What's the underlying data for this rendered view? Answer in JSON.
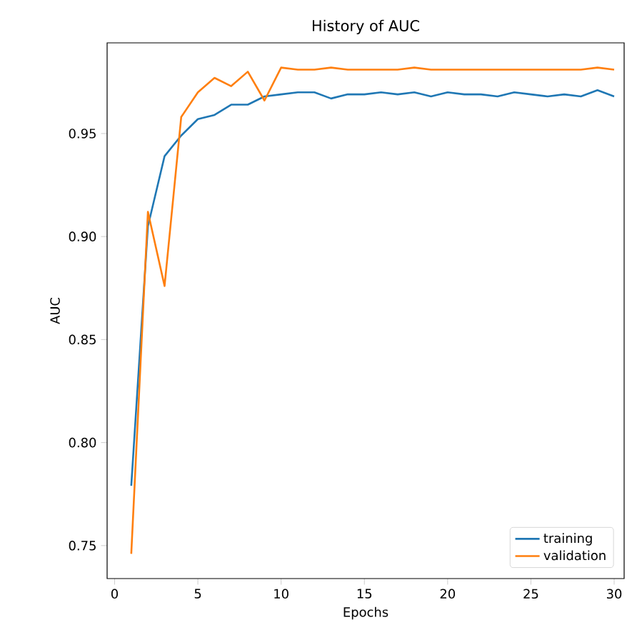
{
  "chart_data": {
    "type": "line",
    "title": "History of AUC",
    "xlabel": "Epochs",
    "ylabel": "AUC",
    "x": [
      1,
      2,
      3,
      4,
      5,
      6,
      7,
      8,
      9,
      10,
      11,
      12,
      13,
      14,
      15,
      16,
      17,
      18,
      19,
      20,
      21,
      22,
      23,
      24,
      25,
      26,
      27,
      28,
      29,
      30
    ],
    "series": [
      {
        "name": "training",
        "color": "#1f77b4",
        "values": [
          0.779,
          0.905,
          0.939,
          0.949,
          0.957,
          0.959,
          0.964,
          0.964,
          0.968,
          0.969,
          0.97,
          0.97,
          0.967,
          0.969,
          0.969,
          0.97,
          0.969,
          0.97,
          0.968,
          0.97,
          0.969,
          0.969,
          0.968,
          0.97,
          0.969,
          0.968,
          0.969,
          0.968,
          0.971,
          0.968
        ]
      },
      {
        "name": "validation",
        "color": "#ff7f0e",
        "values": [
          0.746,
          0.912,
          0.876,
          0.958,
          0.97,
          0.977,
          0.973,
          0.98,
          0.966,
          0.982,
          0.981,
          0.981,
          0.982,
          0.981,
          0.981,
          0.981,
          0.981,
          0.982,
          0.981,
          0.981,
          0.981,
          0.981,
          0.981,
          0.981,
          0.981,
          0.981,
          0.981,
          0.981,
          0.982,
          0.981
        ]
      }
    ],
    "xlim": [
      -0.45,
      30.6
    ],
    "ylim": [
      0.734,
      0.994
    ],
    "xticks": [
      0,
      5,
      10,
      15,
      20,
      25,
      30
    ],
    "yticks": [
      0.75,
      {
        "value": 0.8,
        "label": "0.80"
      },
      0.85,
      {
        "value": 0.9,
        "label": "0.90"
      },
      0.95
    ],
    "legend": "bottom right",
    "grid": false
  }
}
